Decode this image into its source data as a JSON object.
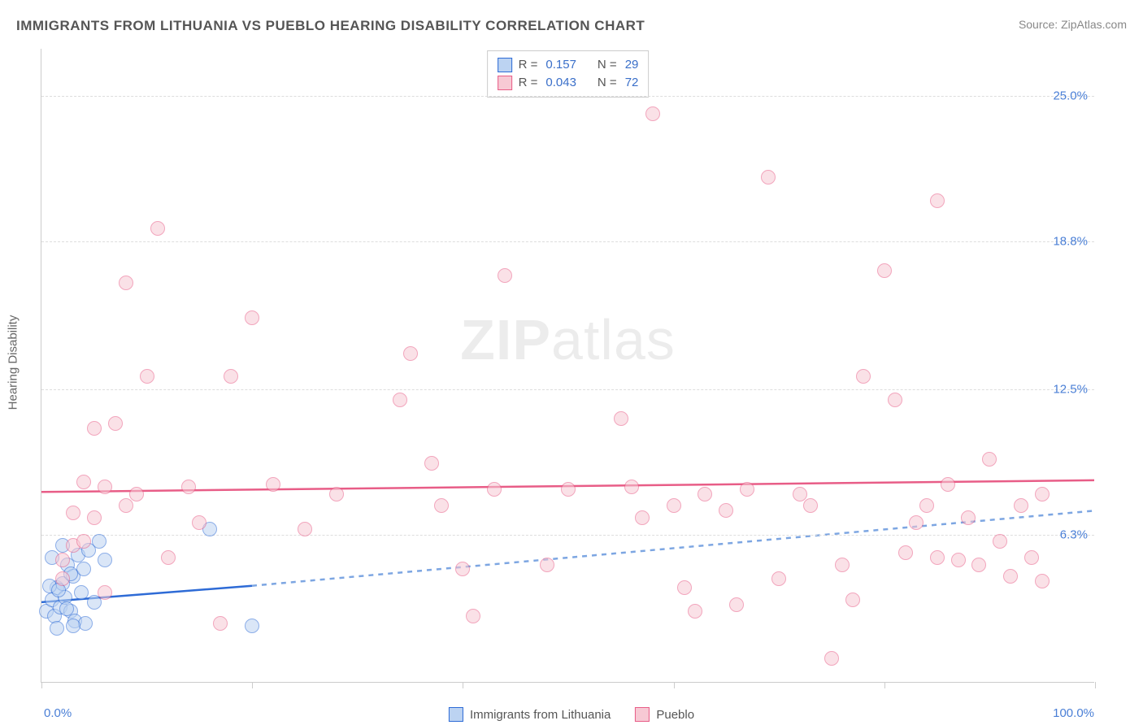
{
  "title": "IMMIGRANTS FROM LITHUANIA VS PUEBLO HEARING DISABILITY CORRELATION CHART",
  "source_label": "Source: ",
  "source_name": "ZipAtlas.com",
  "y_axis_title": "Hearing Disability",
  "watermark_bold": "ZIP",
  "watermark_rest": "atlas",
  "chart": {
    "type": "scatter",
    "xlim": [
      0,
      100
    ],
    "ylim": [
      0,
      27
    ],
    "x_tick_positions": [
      0,
      20,
      40,
      60,
      80,
      100
    ],
    "y_grid": [
      {
        "value": 6.3,
        "label": "6.3%"
      },
      {
        "value": 12.5,
        "label": "12.5%"
      },
      {
        "value": 18.8,
        "label": "18.8%"
      },
      {
        "value": 25.0,
        "label": "25.0%"
      }
    ],
    "x_label_min": "0.0%",
    "x_label_max": "100.0%",
    "background_color": "#ffffff",
    "grid_color": "#dddddd",
    "axis_color": "#cccccc",
    "ylabel_color": "#4a7fd6",
    "point_radius": 9,
    "point_border_width": 1.5,
    "series": [
      {
        "name": "Immigrants from Lithuania",
        "fill": "#bcd3f2",
        "fill_opacity": 0.55,
        "stroke": "#2e6bd6",
        "R": "0.157",
        "N": "29",
        "trend": {
          "x1": 0,
          "y1": 3.4,
          "x_solid_end": 20,
          "y_solid_end": 4.1,
          "x2": 100,
          "y2": 7.3,
          "solid_color": "#2e6bd6",
          "dash_color": "#7da6e2",
          "width": 2.5,
          "dash": "6,6"
        },
        "points": [
          [
            0.5,
            3.0
          ],
          [
            1.0,
            3.5
          ],
          [
            1.2,
            2.8
          ],
          [
            1.5,
            4.0
          ],
          [
            1.8,
            3.2
          ],
          [
            2.0,
            4.2
          ],
          [
            2.2,
            3.6
          ],
          [
            2.5,
            5.0
          ],
          [
            2.8,
            3.0
          ],
          [
            3.0,
            4.5
          ],
          [
            3.2,
            2.6
          ],
          [
            3.5,
            5.4
          ],
          [
            3.8,
            3.8
          ],
          [
            4.0,
            4.8
          ],
          [
            4.2,
            2.5
          ],
          [
            4.5,
            5.6
          ],
          [
            5.0,
            3.4
          ],
          [
            5.5,
            6.0
          ],
          [
            1.0,
            5.3
          ],
          [
            2.0,
            5.8
          ],
          [
            3.0,
            2.4
          ],
          [
            6.0,
            5.2
          ],
          [
            1.5,
            2.3
          ],
          [
            2.8,
            4.6
          ],
          [
            0.8,
            4.1
          ],
          [
            1.6,
            3.9
          ],
          [
            2.4,
            3.1
          ],
          [
            16.0,
            6.5
          ],
          [
            20.0,
            2.4
          ]
        ]
      },
      {
        "name": "Pueblo",
        "fill": "#f7c9d4",
        "fill_opacity": 0.55,
        "stroke": "#e85d87",
        "R": "0.043",
        "N": "72",
        "trend": {
          "x1": 0,
          "y1": 8.1,
          "x_solid_end": 100,
          "y_solid_end": 8.6,
          "x2": 100,
          "y2": 8.6,
          "solid_color": "#e85d87",
          "dash_color": "#e85d87",
          "width": 2.5,
          "dash": ""
        },
        "points": [
          [
            2,
            5.2
          ],
          [
            3,
            5.8
          ],
          [
            4,
            8.5
          ],
          [
            5,
            10.8
          ],
          [
            5,
            7.0
          ],
          [
            6,
            8.3
          ],
          [
            7,
            11.0
          ],
          [
            8,
            17.0
          ],
          [
            9,
            8.0
          ],
          [
            10,
            13.0
          ],
          [
            11,
            19.3
          ],
          [
            12,
            5.3
          ],
          [
            14,
            8.3
          ],
          [
            17,
            2.5
          ],
          [
            18,
            13.0
          ],
          [
            20,
            15.5
          ],
          [
            22,
            8.4
          ],
          [
            28,
            8.0
          ],
          [
            34,
            12.0
          ],
          [
            35,
            14.0
          ],
          [
            37,
            9.3
          ],
          [
            38,
            7.5
          ],
          [
            40,
            4.8
          ],
          [
            41,
            2.8
          ],
          [
            43,
            8.2
          ],
          [
            44,
            17.3
          ],
          [
            50,
            8.2
          ],
          [
            55,
            11.2
          ],
          [
            56,
            8.3
          ],
          [
            57,
            7.0
          ],
          [
            58,
            24.2
          ],
          [
            60,
            7.5
          ],
          [
            61,
            4.0
          ],
          [
            62,
            3.0
          ],
          [
            63,
            8.0
          ],
          [
            65,
            7.3
          ],
          [
            66,
            3.3
          ],
          [
            67,
            8.2
          ],
          [
            69,
            21.5
          ],
          [
            70,
            4.4
          ],
          [
            72,
            8.0
          ],
          [
            73,
            7.5
          ],
          [
            75,
            1.0
          ],
          [
            76,
            5.0
          ],
          [
            77,
            3.5
          ],
          [
            78,
            13.0
          ],
          [
            80,
            17.5
          ],
          [
            81,
            12.0
          ],
          [
            82,
            5.5
          ],
          [
            83,
            6.8
          ],
          [
            84,
            7.5
          ],
          [
            85,
            5.3
          ],
          [
            85,
            20.5
          ],
          [
            86,
            8.4
          ],
          [
            87,
            5.2
          ],
          [
            88,
            7.0
          ],
          [
            89,
            5.0
          ],
          [
            90,
            9.5
          ],
          [
            91,
            6.0
          ],
          [
            92,
            4.5
          ],
          [
            93,
            7.5
          ],
          [
            94,
            5.3
          ],
          [
            95,
            8.0
          ],
          [
            95,
            4.3
          ],
          [
            2,
            4.4
          ],
          [
            3,
            7.2
          ],
          [
            4,
            6.0
          ],
          [
            8,
            7.5
          ],
          [
            6,
            3.8
          ],
          [
            15,
            6.8
          ],
          [
            25,
            6.5
          ],
          [
            48,
            5.0
          ]
        ]
      }
    ]
  },
  "legend_top": {
    "rows": [
      {
        "swatch_fill": "#bcd3f2",
        "swatch_stroke": "#2e6bd6",
        "r_label": "R =",
        "r_val": "0.157",
        "n_label": "N =",
        "n_val": "29"
      },
      {
        "swatch_fill": "#f7c9d4",
        "swatch_stroke": "#e85d87",
        "r_label": "R =",
        "r_val": "0.043",
        "n_label": "N =",
        "n_val": "72"
      }
    ]
  },
  "legend_bottom": [
    {
      "swatch_fill": "#bcd3f2",
      "swatch_stroke": "#2e6bd6",
      "label": "Immigrants from Lithuania"
    },
    {
      "swatch_fill": "#f7c9d4",
      "swatch_stroke": "#e85d87",
      "label": "Pueblo"
    }
  ]
}
